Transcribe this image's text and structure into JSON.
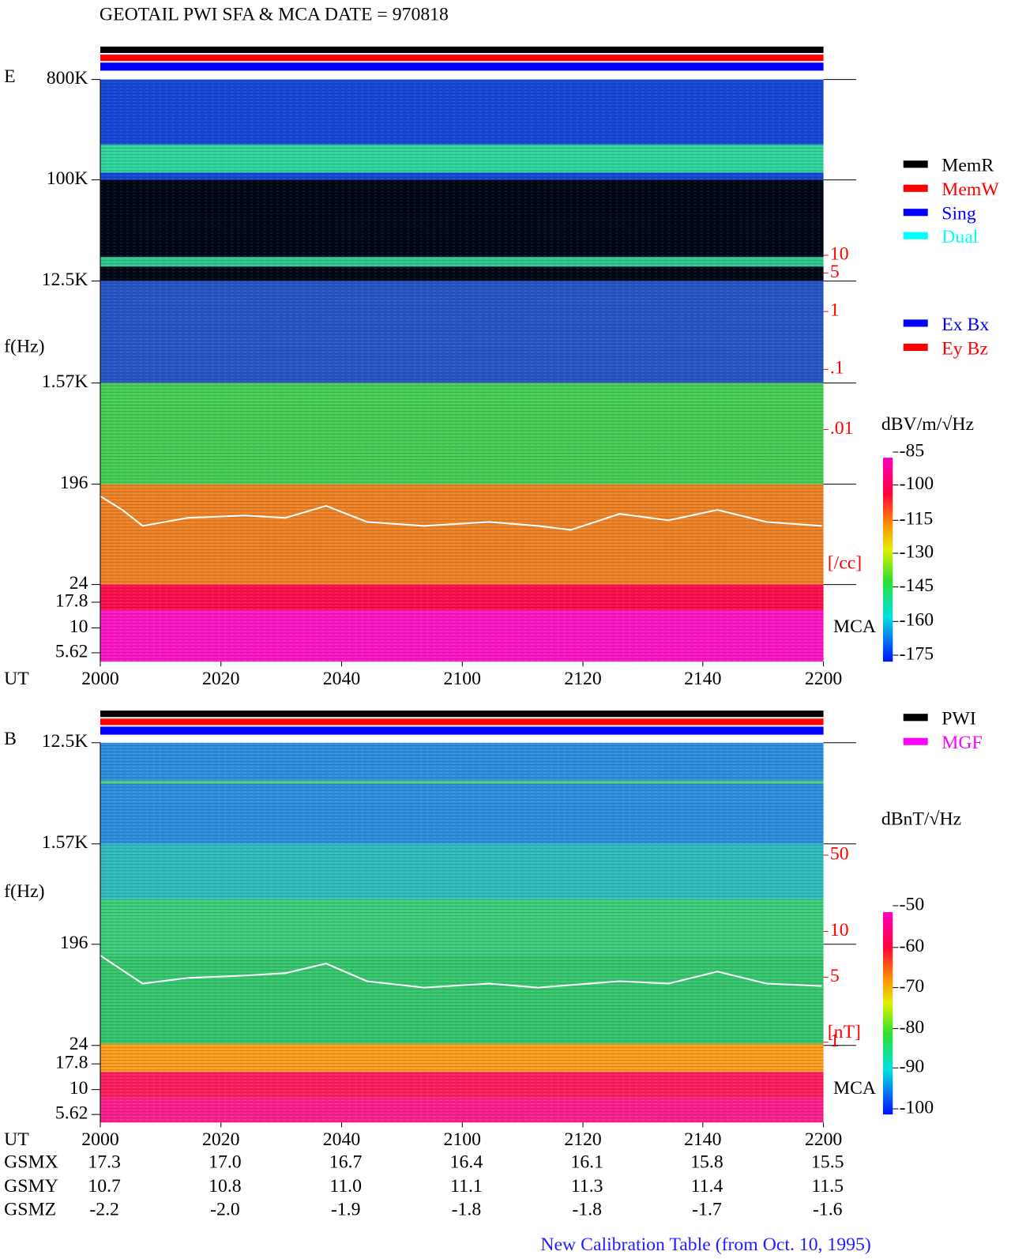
{
  "header": {
    "title": "GEOTAIL  PWI SFA & MCA   DATE = 970818"
  },
  "panels": [
    {
      "label": "E",
      "y_label": "f(Hz)",
      "time_label": "UT",
      "freq_ticks": [
        "800K",
        "100K",
        "12.5K",
        "1.57K",
        "196",
        "24",
        "17.8",
        "10",
        "5.62"
      ],
      "times": [
        "2000",
        "2020",
        "2040",
        "2100",
        "2120",
        "2140",
        "2200"
      ],
      "right_ticks": [
        "10",
        "5",
        "1",
        ".1",
        ".01"
      ],
      "right_unit": "[/cc]",
      "mca": "MCA",
      "legend": [
        {
          "label": "MemR",
          "color": "#000000"
        },
        {
          "label": "MemW",
          "color": "#ff0000"
        },
        {
          "label": "Sing",
          "color": "#0000ff"
        },
        {
          "label": "Dual",
          "color": "#00ffff"
        },
        {
          "label": "Ex Bx",
          "color": "#0000ff"
        },
        {
          "label": "Ey Bz",
          "color": "#ff0000"
        }
      ],
      "colorbar": {
        "unit": "dBV/m/√Hz",
        "ticks": [
          "-85",
          "-100",
          "-115",
          "-130",
          "-145",
          "-160",
          "-175"
        ]
      }
    },
    {
      "label": "B",
      "y_label": "f(Hz)",
      "time_label": "UT",
      "freq_ticks": [
        "12.5K",
        "1.57K",
        "196",
        "24",
        "17.8",
        "10",
        "5.62"
      ],
      "times": [
        "2000",
        "2020",
        "2040",
        "2100",
        "2120",
        "2140",
        "2200"
      ],
      "right_ticks": [
        "50",
        "10",
        "5",
        "1"
      ],
      "right_unit": "[nT]",
      "mca": "MCA",
      "legend": [
        {
          "label": "PWI",
          "color": "#000000"
        },
        {
          "label": "MGF",
          "color": "#ff00ff"
        }
      ],
      "colorbar": {
        "unit": "dBnT/√Hz",
        "ticks": [
          "-50",
          "-60",
          "-70",
          "-80",
          "-90",
          "-100"
        ]
      }
    }
  ],
  "orbit": {
    "rows": [
      [
        "GSMX",
        "17.3",
        "17.0",
        "16.7",
        "16.4",
        "16.1",
        "15.8",
        "15.5"
      ],
      [
        "GSMY",
        "10.7",
        "10.8",
        "11.0",
        "11.1",
        "11.3",
        "11.4",
        "11.5"
      ],
      [
        "GSMZ",
        "-2.2",
        "-2.0",
        "-1.9",
        "-1.8",
        "-1.8",
        "-1.7",
        "-1.6"
      ]
    ]
  },
  "footer": "New Calibration Table (from Oct. 10, 1995)"
}
